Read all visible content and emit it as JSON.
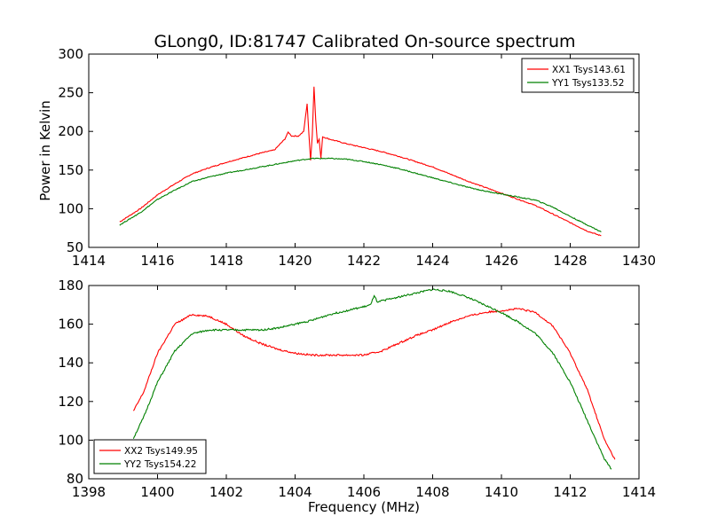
{
  "chart_data": [
    {
      "type": "line",
      "title": "GLong0, ID:81747 Calibrated On-source spectrum",
      "xlabel": "",
      "ylabel": "Power in Kelvin",
      "xlim": [
        1414,
        1430
      ],
      "ylim": [
        50,
        300
      ],
      "xticks": [
        1414,
        1416,
        1418,
        1420,
        1422,
        1424,
        1426,
        1428,
        1430
      ],
      "yticks": [
        50,
        100,
        150,
        200,
        250,
        300
      ],
      "legend_position": "top-right",
      "grid": false,
      "series": [
        {
          "name": "XX1 Tsys143.61",
          "color": "#ff0000",
          "points": [
            [
              1414.9,
              83
            ],
            [
              1415.5,
              100
            ],
            [
              1416,
              118
            ],
            [
              1416.5,
              132
            ],
            [
              1417,
              145
            ],
            [
              1417.5,
              153
            ],
            [
              1418,
              160
            ],
            [
              1418.5,
              166
            ],
            [
              1419,
              172
            ],
            [
              1419.4,
              176
            ],
            [
              1419.7,
              190
            ],
            [
              1419.8,
              199
            ],
            [
              1419.9,
              194
            ],
            [
              1420.1,
              194
            ],
            [
              1420.25,
              200
            ],
            [
              1420.35,
              236
            ],
            [
              1420.4,
              197
            ],
            [
              1420.45,
              163
            ],
            [
              1420.5,
              195
            ],
            [
              1420.55,
              258
            ],
            [
              1420.6,
              215
            ],
            [
              1420.65,
              185
            ],
            [
              1420.7,
              190
            ],
            [
              1420.75,
              165
            ],
            [
              1420.8,
              193
            ],
            [
              1421,
              190
            ],
            [
              1421.5,
              184
            ],
            [
              1422,
              179
            ],
            [
              1422.5,
              174
            ],
            [
              1423,
              168
            ],
            [
              1423.5,
              161
            ],
            [
              1424,
              154
            ],
            [
              1424.5,
              145
            ],
            [
              1425,
              136
            ],
            [
              1425.5,
              128
            ],
            [
              1426,
              120
            ],
            [
              1426.5,
              112
            ],
            [
              1427,
              104
            ],
            [
              1427.5,
              93
            ],
            [
              1428,
              82
            ],
            [
              1428.5,
              71
            ],
            [
              1428.9,
              65
            ]
          ]
        },
        {
          "name": "YY1 Tsys133.52",
          "color": "#008000",
          "points": [
            [
              1414.9,
              79
            ],
            [
              1415.5,
              95
            ],
            [
              1416,
              112
            ],
            [
              1416.5,
              124
            ],
            [
              1417,
              135
            ],
            [
              1417.5,
              141
            ],
            [
              1418,
              146
            ],
            [
              1418.5,
              150
            ],
            [
              1419,
              154
            ],
            [
              1419.5,
              158
            ],
            [
              1420,
              162
            ],
            [
              1420.5,
              165
            ],
            [
              1421,
              165
            ],
            [
              1421.5,
              164
            ],
            [
              1422,
              161
            ],
            [
              1422.5,
              157
            ],
            [
              1423,
              152
            ],
            [
              1423.5,
              146
            ],
            [
              1424,
              140
            ],
            [
              1424.5,
              134
            ],
            [
              1425,
              128
            ],
            [
              1425.5,
              123
            ],
            [
              1426,
              119
            ],
            [
              1426.5,
              115
            ],
            [
              1427,
              111
            ],
            [
              1427.5,
              102
            ],
            [
              1428,
              90
            ],
            [
              1428.5,
              79
            ],
            [
              1428.9,
              70
            ]
          ]
        }
      ]
    },
    {
      "type": "line",
      "title": "",
      "xlabel": "Frequency (MHz)",
      "ylabel": "",
      "xlim": [
        1398,
        1414
      ],
      "ylim": [
        80,
        180
      ],
      "xticks": [
        1398,
        1400,
        1402,
        1404,
        1406,
        1408,
        1410,
        1412,
        1414
      ],
      "yticks": [
        80,
        100,
        120,
        140,
        160,
        180
      ],
      "legend_position": "bottom-left",
      "grid": false,
      "series": [
        {
          "name": "XX2 Tsys149.95",
          "color": "#ff0000",
          "points": [
            [
              1399.3,
              115
            ],
            [
              1399.6,
              125
            ],
            [
              1400,
              145
            ],
            [
              1400.5,
              160
            ],
            [
              1401,
              165
            ],
            [
              1401.5,
              164
            ],
            [
              1402,
              160
            ],
            [
              1402.5,
              154
            ],
            [
              1403,
              150
            ],
            [
              1403.5,
              147
            ],
            [
              1404,
              145
            ],
            [
              1404.5,
              144
            ],
            [
              1405,
              144
            ],
            [
              1405.5,
              144
            ],
            [
              1406,
              144
            ],
            [
              1406.5,
              146
            ],
            [
              1407,
              150
            ],
            [
              1407.5,
              154
            ],
            [
              1408,
              157
            ],
            [
              1408.5,
              161
            ],
            [
              1409,
              164
            ],
            [
              1409.5,
              166
            ],
            [
              1410,
              167
            ],
            [
              1410.5,
              168
            ],
            [
              1411,
              166
            ],
            [
              1411.5,
              159
            ],
            [
              1412,
              145
            ],
            [
              1412.5,
              126
            ],
            [
              1413,
              100
            ],
            [
              1413.3,
              90
            ]
          ]
        },
        {
          "name": "YY2 Tsys154.22",
          "color": "#008000",
          "points": [
            [
              1399.3,
              101
            ],
            [
              1399.6,
              112
            ],
            [
              1400,
              130
            ],
            [
              1400.5,
              146
            ],
            [
              1401,
              155
            ],
            [
              1401.5,
              157
            ],
            [
              1402,
              157
            ],
            [
              1402.5,
              157
            ],
            [
              1403,
              157
            ],
            [
              1403.5,
              158
            ],
            [
              1404,
              160
            ],
            [
              1404.5,
              162
            ],
            [
              1405,
              165
            ],
            [
              1405.5,
              167
            ],
            [
              1406,
              169
            ],
            [
              1406.2,
              170
            ],
            [
              1406.3,
              175
            ],
            [
              1406.4,
              171
            ],
            [
              1406.5,
              172
            ],
            [
              1407,
              174
            ],
            [
              1407.5,
              176
            ],
            [
              1408,
              178
            ],
            [
              1408.5,
              177
            ],
            [
              1409,
              174
            ],
            [
              1409.5,
              170
            ],
            [
              1410,
              166
            ],
            [
              1410.5,
              161
            ],
            [
              1411,
              155
            ],
            [
              1411.5,
              145
            ],
            [
              1412,
              130
            ],
            [
              1412.5,
              110
            ],
            [
              1413,
              90
            ],
            [
              1413.2,
              85
            ]
          ]
        }
      ]
    }
  ]
}
